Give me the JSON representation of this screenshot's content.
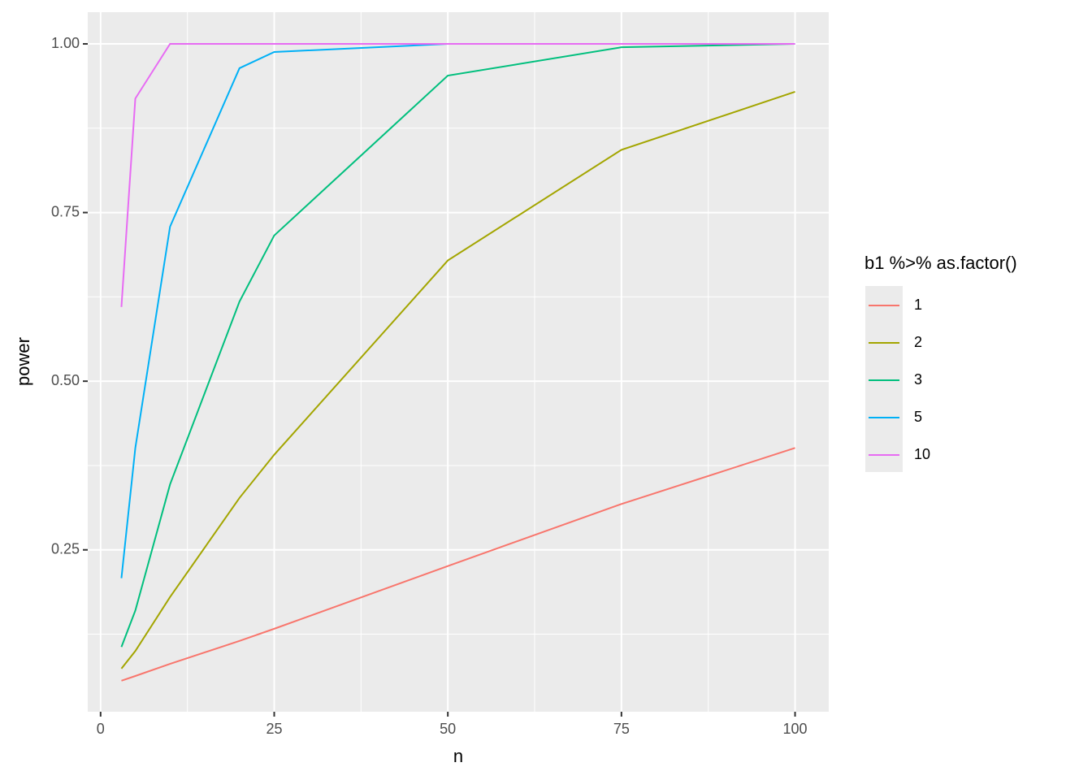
{
  "chart_data": {
    "type": "line",
    "x_label": "n",
    "y_label": "power",
    "x": [
      3,
      5,
      10,
      20,
      25,
      50,
      75,
      100
    ],
    "series": [
      {
        "name": "1",
        "color": "#F8766D",
        "values": [
          0.056,
          0.063,
          0.081,
          0.115,
          0.133,
          0.226,
          0.318,
          0.401
        ]
      },
      {
        "name": "2",
        "color": "#A3A500",
        "values": [
          0.074,
          0.1,
          0.18,
          0.327,
          0.391,
          0.679,
          0.843,
          0.929
        ]
      },
      {
        "name": "3",
        "color": "#00BF7D",
        "values": [
          0.106,
          0.16,
          0.347,
          0.618,
          0.716,
          0.953,
          0.995,
          1.0
        ]
      },
      {
        "name": "5",
        "color": "#00B0F6",
        "values": [
          0.208,
          0.401,
          0.729,
          0.964,
          0.988,
          1.0,
          1.0,
          1.0
        ]
      },
      {
        "name": "10",
        "color": "#E76BF3",
        "values": [
          0.61,
          0.919,
          1.0,
          1.0,
          1.0,
          1.0,
          1.0,
          1.0
        ]
      }
    ],
    "legend_title": "b1 %>% as.factor()",
    "legend_position": "right",
    "xlim": [
      -1.85,
      104.85
    ],
    "xticks": [
      0,
      25,
      50,
      75,
      100
    ],
    "ylim": [
      0.01,
      1.047
    ],
    "yticks": [
      {
        "value": 0.25,
        "label": "0.25"
      },
      {
        "value": 0.5,
        "label": "0.50"
      },
      {
        "value": 0.75,
        "label": "0.75"
      },
      {
        "value": 1.0,
        "label": "1.00"
      }
    ],
    "grid": true
  }
}
